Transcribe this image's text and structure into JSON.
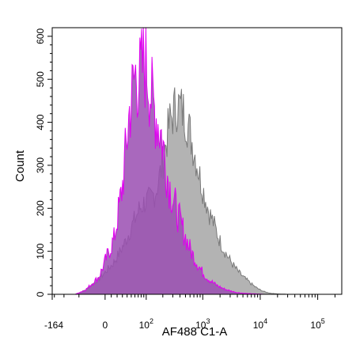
{
  "chart_data": {
    "type": "area",
    "xlabel": "AF488 C1-A",
    "ylabel": "Count",
    "x_scale": "biexponential",
    "x_range": [
      -164,
      262144
    ],
    "y_range": [
      0,
      620
    ],
    "x_ticks": [
      {
        "value": -164,
        "label": "-164",
        "exp": ""
      },
      {
        "value": 0,
        "label": "0",
        "exp": ""
      },
      {
        "value": 100,
        "label": "10",
        "exp": "2"
      },
      {
        "value": 1000,
        "label": "10",
        "exp": "3"
      },
      {
        "value": 10000,
        "label": "10",
        "exp": "4"
      },
      {
        "value": 100000,
        "label": "10",
        "exp": "5"
      }
    ],
    "y_ticks": [
      {
        "value": 0,
        "label": "0"
      },
      {
        "value": 100,
        "label": "100"
      },
      {
        "value": 200,
        "label": "200"
      },
      {
        "value": 300,
        "label": "300"
      },
      {
        "value": 400,
        "label": "400"
      },
      {
        "value": 500,
        "label": "500"
      },
      {
        "value": 600,
        "label": "600"
      }
    ],
    "series": [
      {
        "fill": "#b3b3b3",
        "stroke": "#7a7a7a",
        "x": [
          -60,
          -35,
          -10,
          15,
          35,
          55,
          75,
          95,
          120,
          150,
          180,
          220,
          260,
          300,
          350,
          400,
          480,
          560,
          650,
          780,
          900,
          1100,
          1300,
          1600,
          1900,
          2300,
          2800,
          3500,
          4300,
          5300,
          6500,
          8000,
          10000,
          12500,
          16000,
          20000,
          30000
        ],
        "y": [
          0,
          10,
          35,
          75,
          120,
          165,
          200,
          215,
          220,
          240,
          280,
          340,
          395,
          420,
          440,
          435,
          420,
          390,
          355,
          310,
          270,
          225,
          190,
          160,
          130,
          105,
          85,
          65,
          50,
          38,
          28,
          18,
          10,
          5,
          2,
          1,
          0
        ]
      },
      {
        "fill": "#9a4db1",
        "stroke": "#e000f0",
        "x": [
          -60,
          -35,
          -10,
          15,
          30,
          45,
          60,
          75,
          90,
          105,
          120,
          135,
          150,
          170,
          190,
          220,
          250,
          290,
          340,
          400,
          480,
          560,
          650,
          780,
          950,
          1150,
          1400,
          1800,
          2300,
          3000,
          4000,
          5500,
          8000,
          12000
        ],
        "y": [
          0,
          10,
          40,
          130,
          250,
          420,
          510,
          500,
          540,
          520,
          470,
          440,
          420,
          390,
          370,
          310,
          265,
          230,
          200,
          170,
          140,
          115,
          95,
          75,
          55,
          40,
          30,
          20,
          13,
          8,
          4,
          2,
          1,
          0
        ]
      }
    ]
  }
}
